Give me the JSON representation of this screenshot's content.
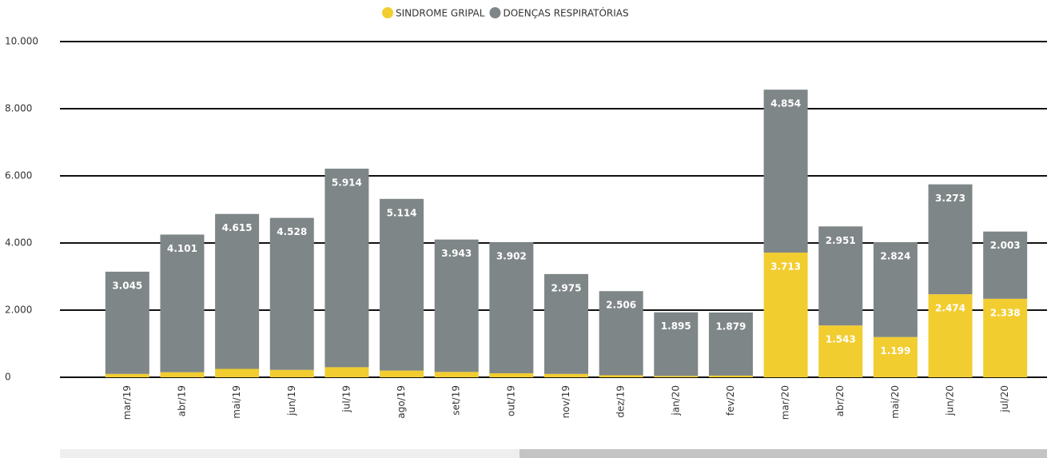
{
  "chart_data": {
    "type": "stacked_bar",
    "categories": [
      "mar/19",
      "abr/19",
      "mai/19",
      "jun/19",
      "jul/19",
      "ago/19",
      "set/19",
      "out/19",
      "nov/19",
      "dez/19",
      "jan/20",
      "fev/20",
      "mar/20",
      "abr/20",
      "mai/20",
      "jun/20",
      "jul/20"
    ],
    "series": [
      {
        "name": "SINDROME GRIPAL",
        "color": "#f2cd30",
        "values": [
          100,
          150,
          250,
          220,
          300,
          200,
          160,
          120,
          100,
          60,
          40,
          50,
          3713,
          1543,
          1199,
          2474,
          2338
        ],
        "value_labels": [
          null,
          null,
          null,
          null,
          null,
          null,
          null,
          null,
          null,
          null,
          null,
          null,
          "3.713",
          "1.543",
          "1.199",
          "2.474",
          "2.338"
        ]
      },
      {
        "name": "DOENÇAS RESPIRATÓRIAS",
        "color": "#7f8687",
        "values": [
          3045,
          4101,
          4615,
          4528,
          5914,
          5114,
          3943,
          3902,
          2975,
          2506,
          1895,
          1879,
          4854,
          2951,
          2824,
          3273,
          2003
        ],
        "value_labels": [
          "3.045",
          "4.101",
          "4.615",
          "4.528",
          "5.914",
          "5.114",
          "3.943",
          "3.902",
          "2.975",
          "2.506",
          "1.895",
          "1.879",
          "4.854",
          "2.951",
          "2.824",
          "3.273",
          "2.003"
        ]
      }
    ],
    "ylim": [
      0,
      10000
    ],
    "yticks": [
      0,
      {
        "value": 2000,
        "label": "2.000"
      },
      {
        "value": 4000,
        "label": "4.000"
      },
      {
        "value": 6000,
        "label": "6.000"
      },
      {
        "value": 8000,
        "label": "8.000"
      },
      {
        "value": 10000,
        "label": "10.000"
      }
    ],
    "grid": true,
    "legend": "top"
  }
}
